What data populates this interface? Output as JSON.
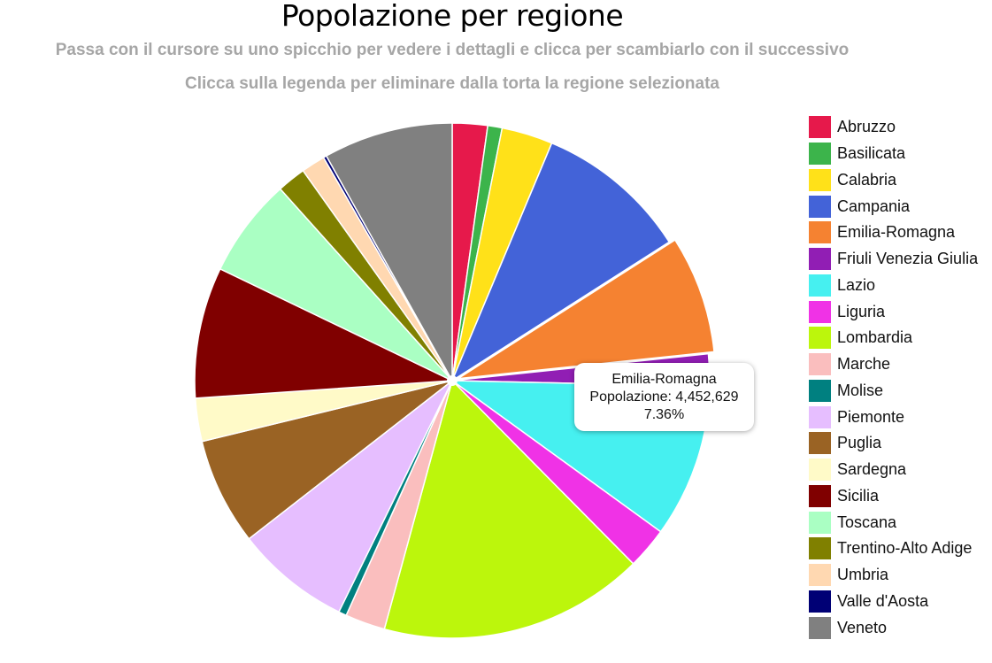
{
  "chart_data": {
    "type": "pie",
    "title": "Popolazione per regione",
    "subtitle": "Passa con il cursore su uno spicchio per vedere i dettagli e clicca per scambiarlo con il successivo",
    "subtitle2": "Clicca sulla legenda per eliminare dalla torta la regione selezionata",
    "legend_position": "right",
    "slices": [
      {
        "label": "Abruzzo",
        "color": "#e6194b",
        "percent": 2.2
      },
      {
        "label": "Basilicata",
        "color": "#3cb44b",
        "percent": 0.9
      },
      {
        "label": "Calabria",
        "color": "#ffe119",
        "percent": 3.2
      },
      {
        "label": "Campania",
        "color": "#4363d8",
        "percent": 9.6
      },
      {
        "label": "Emilia-Romagna",
        "color": "#f58231",
        "percent": 7.36,
        "value": 4452629
      },
      {
        "label": "Friuli Venezia Giulia",
        "color": "#911eb4",
        "percent": 2.0
      },
      {
        "label": "Lazio",
        "color": "#46f0f0",
        "percent": 9.6
      },
      {
        "label": "Liguria",
        "color": "#f032e6",
        "percent": 2.6
      },
      {
        "label": "Lombardia",
        "color": "#bcf60c",
        "percent": 16.6
      },
      {
        "label": "Marche",
        "color": "#fabebe",
        "percent": 2.5
      },
      {
        "label": "Molise",
        "color": "#008080",
        "percent": 0.5
      },
      {
        "label": "Piemonte",
        "color": "#e6beff",
        "percent": 7.2
      },
      {
        "label": "Puglia",
        "color": "#9a6324",
        "percent": 6.7
      },
      {
        "label": "Sardegna",
        "color": "#fffac8",
        "percent": 2.7
      },
      {
        "label": "Sicilia",
        "color": "#800000",
        "percent": 8.2
      },
      {
        "label": "Toscana",
        "color": "#aaffc3",
        "percent": 6.2
      },
      {
        "label": "Trentino-Alto Adige",
        "color": "#808000",
        "percent": 1.8
      },
      {
        "label": "Umbria",
        "color": "#ffd8b1",
        "percent": 1.5
      },
      {
        "label": "Valle d'Aosta",
        "color": "#000075",
        "percent": 0.2
      },
      {
        "label": "Veneto",
        "color": "#808080",
        "percent": 8.1
      }
    ],
    "tooltip": {
      "label": "Emilia-Romagna",
      "value_text": "Popolazione: 4,452,629",
      "percent_text": "7.36%"
    }
  }
}
